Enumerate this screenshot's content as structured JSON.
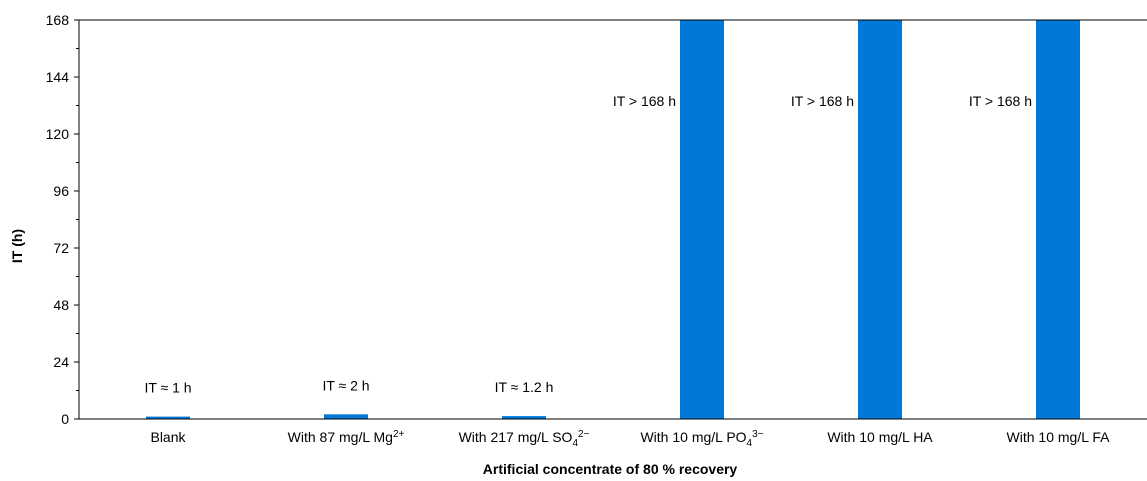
{
  "chart_data": {
    "type": "bar",
    "categories": [
      {
        "text": "Blank",
        "sup": "",
        "sub": "",
        "sup2": ""
      },
      {
        "text": "With 87 mg/L Mg",
        "sup": "2+",
        "sub": "",
        "sup2": ""
      },
      {
        "text": "With 217 mg/L SO",
        "sup": "",
        "sub": "4",
        "sup2": "2−"
      },
      {
        "text": "With 10 mg/L PO",
        "sup": "",
        "sub": "4",
        "sup2": "3−"
      },
      {
        "text": "With 10 mg/L HA",
        "sup": "",
        "sub": "",
        "sup2": ""
      },
      {
        "text": "With 10 mg/L FA",
        "sup": "",
        "sub": "",
        "sup2": ""
      }
    ],
    "values": [
      1,
      2,
      1.2,
      168,
      168,
      168
    ],
    "annotations": [
      "IT ≈ 1 h",
      "IT ≈ 2 h",
      "IT ≈ 1.2 h",
      "IT > 168 h",
      "IT > 168 h",
      "IT > 168 h"
    ],
    "ylabel": "IT (h)",
    "xlabel": "Artificial  concentrate  of 80 % recovery",
    "ylim": [
      0,
      168
    ],
    "yticks": [
      0,
      24,
      48,
      72,
      96,
      120,
      144,
      168
    ],
    "grid": false,
    "legend": "none",
    "bar_color": "#0078d7"
  }
}
